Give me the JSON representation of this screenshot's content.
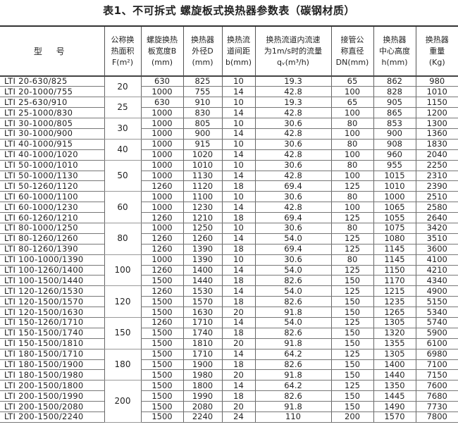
{
  "title": "表1、不可拆式 螺旋板式换热器参数表（碳钢材质）",
  "headers": [
    [
      "型 号"
    ],
    [
      "公称换",
      "热面积",
      "F(m²)"
    ],
    [
      "螺旋换热",
      "板宽度B",
      "(mm)"
    ],
    [
      "换热器",
      "外径D",
      "(mm)"
    ],
    [
      "换热流",
      "道间距",
      "b(mm)"
    ],
    [
      "换热流道内流速",
      "为1m/s时的流量",
      "qᵥ(m³/h)"
    ],
    [
      "接管公",
      "称直径",
      "DN(mm)"
    ],
    [
      "换热器",
      "中心高度",
      "h(mm)"
    ],
    [
      "换热器",
      "重量",
      "(Kg)"
    ]
  ],
  "groups": [
    {
      "area": "20",
      "rows": [
        [
          "LTI 20-630/825",
          "630",
          "825",
          "10",
          "19.3",
          "65",
          "862",
          "980"
        ],
        [
          "LTI 20-1000/755",
          "1000",
          "755",
          "14",
          "42.8",
          "100",
          "828",
          "1010"
        ]
      ]
    },
    {
      "area": "25",
      "rows": [
        [
          "LTI 25-630/910",
          "630",
          "910",
          "10",
          "19.3",
          "65",
          "905",
          "1150"
        ],
        [
          "LTI 25-1000/830",
          "1000",
          "830",
          "14",
          "42.8",
          "100",
          "865",
          "1200"
        ]
      ]
    },
    {
      "area": "30",
      "rows": [
        [
          "LTI 30-1000/805",
          "1000",
          "805",
          "10",
          "30.6",
          "80",
          "853",
          "1300"
        ],
        [
          "LTI 30-1000/900",
          "1000",
          "900",
          "14",
          "42.8",
          "100",
          "900",
          "1360"
        ]
      ]
    },
    {
      "area": "40",
      "rows": [
        [
          "LTI 40-1000/915",
          "1000",
          "915",
          "10",
          "30.6",
          "80",
          "908",
          "1830"
        ],
        [
          "LTI 40-1000/1020",
          "1000",
          "1020",
          "14",
          "42.8",
          "100",
          "960",
          "2040"
        ]
      ]
    },
    {
      "area": "50",
      "rows": [
        [
          "LTI 50-1000/1010",
          "1000",
          "1010",
          "10",
          "30.6",
          "80",
          "955",
          "2250"
        ],
        [
          "LTI 50-1000/1130",
          "1000",
          "1130",
          "14",
          "42.8",
          "100",
          "1015",
          "2310"
        ],
        [
          "LTI 50-1260/1120",
          "1260",
          "1120",
          "18",
          "69.4",
          "125",
          "1010",
          "2390"
        ]
      ]
    },
    {
      "area": "60",
      "rows": [
        [
          "LTI 60-1000/1100",
          "1000",
          "1100",
          "10",
          "30.6",
          "80",
          "1000",
          "2510"
        ],
        [
          "LTI 60-1000/1230",
          "1000",
          "1230",
          "14",
          "42.8",
          "100",
          "1065",
          "2580"
        ],
        [
          "LTI 60-1260/1210",
          "1260",
          "1210",
          "18",
          "69.4",
          "125",
          "1055",
          "2640"
        ]
      ]
    },
    {
      "area": "80",
      "rows": [
        [
          "LTI 80-1000/1250",
          "1000",
          "1250",
          "10",
          "30.6",
          "80",
          "1075",
          "3420"
        ],
        [
          "LTI 80-1260/1260",
          "1260",
          "1260",
          "14",
          "54.0",
          "125",
          "1080",
          "3510"
        ],
        [
          "LTI 80-1260/1390",
          "1260",
          "1390",
          "18",
          "69.4",
          "125",
          "1145",
          "3600"
        ]
      ]
    },
    {
      "area": "100",
      "rows": [
        [
          "LTI 100-1000/1390",
          "1000",
          "1390",
          "10",
          "30.6",
          "80",
          "1145",
          "4100"
        ],
        [
          "LTI 100-1260/1400",
          "1260",
          "1400",
          "14",
          "54.0",
          "125",
          "1150",
          "4210"
        ],
        [
          "LTI 100-1500/1440",
          "1500",
          "1440",
          "18",
          "82.6",
          "150",
          "1170",
          "4340"
        ]
      ]
    },
    {
      "area": "120",
      "rows": [
        [
          "LTI 120-1260/1530",
          "1260",
          "1530",
          "14",
          "54.0",
          "125",
          "1215",
          "4900"
        ],
        [
          "LTI 120-1500/1570",
          "1500",
          "1570",
          "18",
          "82.6",
          "150",
          "1235",
          "5150"
        ],
        [
          "LTI 120-1500/1630",
          "1500",
          "1630",
          "20",
          "91.8",
          "150",
          "1265",
          "5340"
        ]
      ]
    },
    {
      "area": "150",
      "rows": [
        [
          "LTI 150-1260/1710",
          "1260",
          "1710",
          "14",
          "54.0",
          "125",
          "1305",
          "5740"
        ],
        [
          "LTI 150-1500/1740",
          "1500",
          "1740",
          "18",
          "82.6",
          "150",
          "1320",
          "5900"
        ],
        [
          "LTI 150-1500/1810",
          "1500",
          "1810",
          "20",
          "91.8",
          "150",
          "1355",
          "6100"
        ]
      ]
    },
    {
      "area": "180",
      "rows": [
        [
          "LTI 180-1500/1710",
          "1500",
          "1710",
          "14",
          "64.2",
          "125",
          "1305",
          "6980"
        ],
        [
          "LTI 180-1500/1900",
          "1500",
          "1900",
          "18",
          "82.6",
          "150",
          "1400",
          "7100"
        ],
        [
          "LTI 180-1500/1980",
          "1500",
          "1980",
          "20",
          "91.8",
          "150",
          "1440",
          "7150"
        ]
      ]
    },
    {
      "area": "200",
      "rows": [
        [
          "LTI 200-1500/1800",
          "1500",
          "1800",
          "14",
          "64.2",
          "125",
          "1350",
          "7600"
        ],
        [
          "LTI 200-1500/1990",
          "1500",
          "1990",
          "18",
          "82.6",
          "150",
          "1445",
          "7680"
        ],
        [
          "LTI 200-1500/2080",
          "1500",
          "2080",
          "20",
          "91.8",
          "150",
          "1490",
          "7730"
        ],
        [
          "LTI 200-1500/2240",
          "1500",
          "2240",
          "24",
          "110",
          "200",
          "1570",
          "7800"
        ]
      ]
    }
  ]
}
